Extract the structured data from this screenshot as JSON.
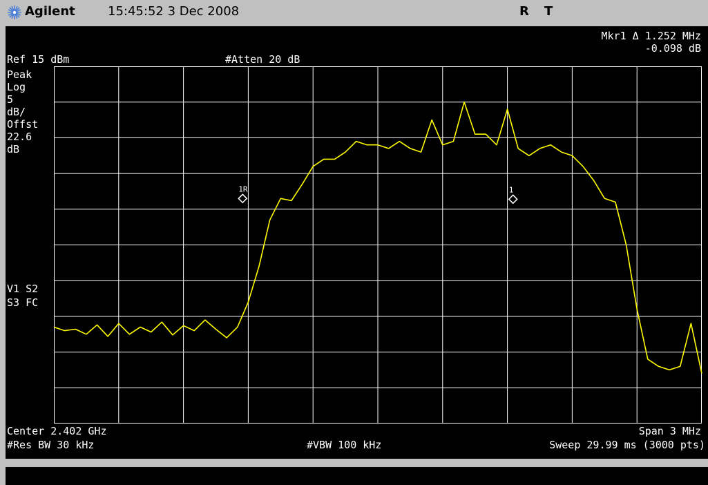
{
  "titlebar": {
    "brand": "Agilent",
    "datetime": "15:45:52  3 Dec 2008",
    "status_r": "R",
    "status_t": "T"
  },
  "marker": {
    "readout_line1": "Mkr1 Δ  1.252 MHz",
    "readout_line2": "-0.098 dB",
    "label_ref": "1R",
    "label_mkr": "1"
  },
  "settings": {
    "ref_level": "Ref 15 dBm",
    "atten": "#Atten 20 dB",
    "left_panel": [
      "Peak",
      "Log",
      "5",
      "dB/",
      "Offst",
      "22.6",
      "dB"
    ],
    "flags_line1": "V1  S2",
    "flags_line2": "S3  FC",
    "center": "Center 2.402 GHz",
    "span": "Span 3 MHz",
    "res_bw": "#Res BW 30 kHz",
    "vbw": "#VBW 100 kHz",
    "sweep": "Sweep 29.99 ms (3000 pts)"
  },
  "colors": {
    "background": "#000000",
    "grid": "#ffffff",
    "trace": "#ffff00",
    "panel": "#c0c0c0"
  },
  "chart_data": {
    "type": "line",
    "center_mhz": 2402,
    "span_mhz": 3,
    "ref_level_dbm": 15,
    "scale_db_per_div": 5,
    "ylim": [
      -35,
      15
    ],
    "xlim": [
      2400.5,
      2403.5
    ],
    "grid": true,
    "series": [
      {
        "x": [
          2400.5,
          2400.55,
          2400.6,
          2400.65,
          2400.7,
          2400.75,
          2400.8,
          2400.85,
          2400.9,
          2400.95,
          2401.0,
          2401.05,
          2401.1,
          2401.15,
          2401.2,
          2401.25,
          2401.3,
          2401.35,
          2401.4,
          2401.45,
          2401.5,
          2401.55,
          2401.6,
          2401.65,
          2401.7,
          2401.75,
          2401.8,
          2401.85,
          2401.9,
          2401.95,
          2402.0,
          2402.05,
          2402.1,
          2402.15,
          2402.2,
          2402.25,
          2402.3,
          2402.35,
          2402.4,
          2402.45,
          2402.5,
          2402.55,
          2402.6,
          2402.65,
          2402.7,
          2402.75,
          2402.8,
          2402.85,
          2402.9,
          2402.95,
          2403.0,
          2403.05,
          2403.1,
          2403.15,
          2403.2,
          2403.25,
          2403.3,
          2403.35,
          2403.4,
          2403.45,
          2403.5
        ],
        "y": [
          -21.5,
          -22,
          -21.8,
          -22.5,
          -21.2,
          -22.8,
          -21,
          -22.5,
          -21.5,
          -22.2,
          -20.8,
          -22.6,
          -21.3,
          -22,
          -20.5,
          -21.8,
          -23,
          -21.5,
          -18,
          -13,
          -6.5,
          -3.5,
          -3.8,
          -1.5,
          1,
          2,
          2,
          3,
          4.5,
          4,
          4,
          3.5,
          4.5,
          3.5,
          3,
          7.5,
          4,
          4.5,
          10,
          5.5,
          5.5,
          4,
          9,
          3.5,
          2.5,
          3.5,
          4,
          3,
          2.5,
          1,
          -1,
          -3.5,
          -4,
          -10,
          -19,
          -26,
          -27,
          -27.5,
          -27,
          -21,
          -28
        ]
      }
    ]
  }
}
